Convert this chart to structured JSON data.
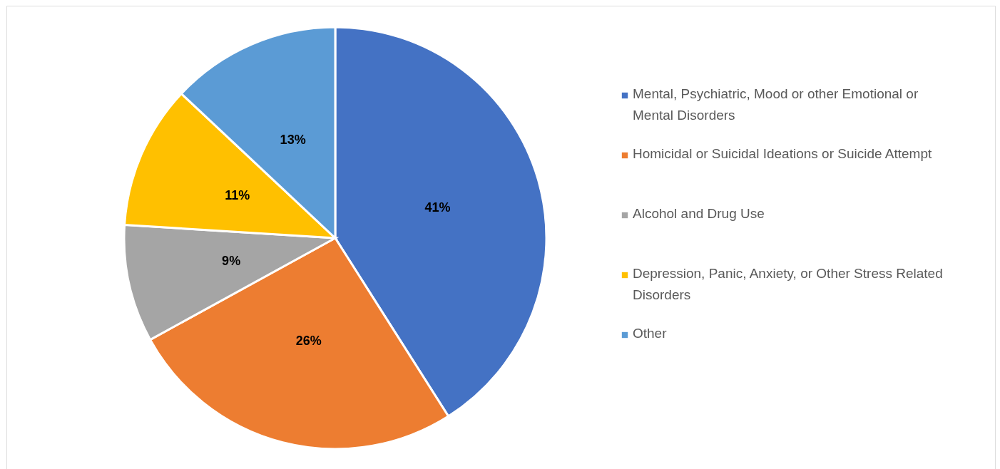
{
  "chart_data": {
    "type": "pie",
    "categories": [
      "Mental, Psychiatric, Mood or other Emotional or Mental Disorders",
      "Homicidal or Suicidal Ideations or Suicide Attempt",
      "Alcohol and Drug Use",
      "Depression, Panic, Anxiety, or Other Stress Related Disorders",
      "Other"
    ],
    "values": [
      41,
      26,
      9,
      11,
      13
    ],
    "colors": [
      "#4472c4",
      "#ed7d31",
      "#a5a5a5",
      "#ffc000",
      "#5b9bd5"
    ],
    "value_labels": [
      "41%",
      "26%",
      "9%",
      "11%",
      "13%"
    ],
    "legend": "right"
  }
}
